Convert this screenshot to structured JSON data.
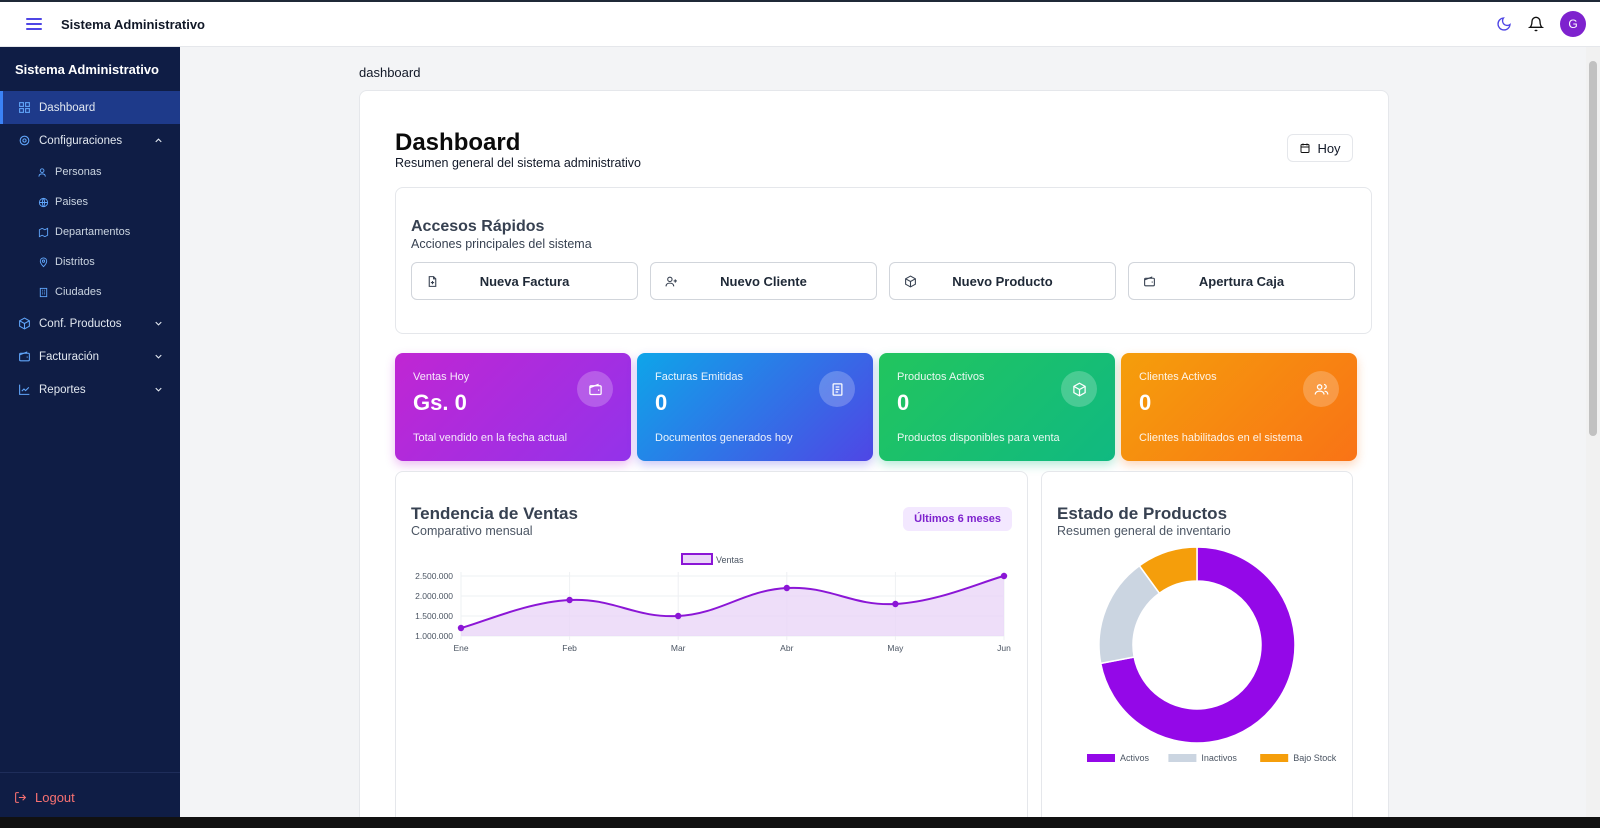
{
  "topbar": {
    "app_title": "Sistema Administrativo",
    "avatar_initial": "G",
    "icons": [
      "menu-icon",
      "moon-icon",
      "bell-icon"
    ]
  },
  "sidebar": {
    "brand": "Sistema Administrativo",
    "items": [
      {
        "label": "Dashboard",
        "icon": "grid-icon",
        "active": true
      },
      {
        "label": "Configuraciones",
        "icon": "gear-icon",
        "expanded": true
      },
      {
        "label": "Personas",
        "icon": "users-icon"
      },
      {
        "label": "Paises",
        "icon": "globe-icon"
      },
      {
        "label": "Departamentos",
        "icon": "map-icon"
      },
      {
        "label": "Distritos",
        "icon": "pin-icon"
      },
      {
        "label": "Ciudades",
        "icon": "building-icon"
      },
      {
        "label": "Conf. Productos",
        "icon": "box-icon"
      },
      {
        "label": "Facturación",
        "icon": "wallet-icon"
      },
      {
        "label": "Reportes",
        "icon": "chart-icon"
      }
    ],
    "logout": "Logout"
  },
  "main": {
    "breadcrumb": "dashboard",
    "title": "Dashboard",
    "subtitle": "Resumen general del sistema administrativo",
    "today_button": "Hoy",
    "quick_access": {
      "title": "Accesos Rápidos",
      "subtitle": "Acciones principales del sistema",
      "actions": [
        {
          "label": "Nueva Factura",
          "icon": "file-plus-icon"
        },
        {
          "label": "Nuevo Cliente",
          "icon": "user-plus-icon"
        },
        {
          "label": "Nuevo Producto",
          "icon": "box-icon"
        },
        {
          "label": "Apertura Caja",
          "icon": "wallet-icon"
        }
      ]
    },
    "stats": [
      {
        "title": "Ventas Hoy",
        "value": "Gs. 0",
        "desc": "Total vendido en la fecha actual",
        "icon": "wallet-icon",
        "gradient": [
          "#c026d3",
          "#9333ea"
        ]
      },
      {
        "title": "Facturas Emitidas",
        "value": "0",
        "desc": "Documentos generados hoy",
        "icon": "receipt-icon",
        "gradient": [
          "#0ea5e9",
          "#4f46e5"
        ]
      },
      {
        "title": "Productos Activos",
        "value": "0",
        "desc": "Productos disponibles para venta",
        "icon": "box-icon",
        "gradient": [
          "#22c55e",
          "#10b981"
        ]
      },
      {
        "title": "Clientes Activos",
        "value": "0",
        "desc": "Clientes habilitados en el sistema",
        "icon": "users-icon",
        "gradient": [
          "#f59e0b",
          "#f97316"
        ]
      }
    ],
    "sales_panel": {
      "title": "Tendencia de Ventas",
      "subtitle": "Comparativo mensual",
      "badge": "Últimos 6 meses"
    },
    "products_panel": {
      "title": "Estado de Productos",
      "subtitle": "Resumen general de inventario"
    }
  },
  "chart_data": [
    {
      "type": "area",
      "categories": [
        "Ene",
        "Feb",
        "Mar",
        "Abr",
        "May",
        "Jun"
      ],
      "series": [
        {
          "name": "Ventas",
          "values": [
            1200000,
            1900000,
            1500000,
            2200000,
            1800000,
            2500000
          ]
        }
      ],
      "ylim": [
        1000000,
        2500000
      ],
      "yticks": [
        "2.500.000",
        "2.000.000",
        "1.500.000",
        "1.000.000"
      ],
      "legend": "top",
      "color": "#8b16d6"
    },
    {
      "type": "pie",
      "categories": [
        "Activos",
        "Inactivos",
        "Bajo Stock"
      ],
      "values": [
        72,
        18,
        10
      ],
      "colors": [
        "#9408e8",
        "#cbd5e1",
        "#f59e0b"
      ],
      "legend": "bottom"
    }
  ]
}
